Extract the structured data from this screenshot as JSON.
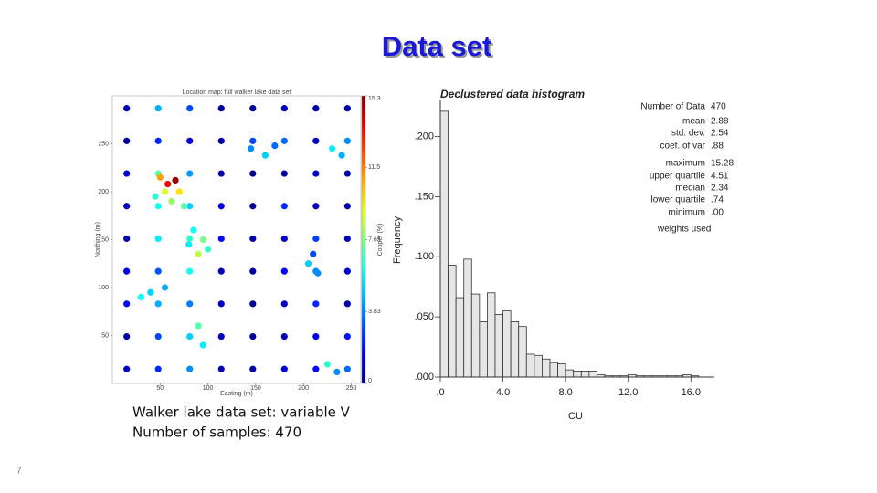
{
  "slide_title": "Data set",
  "caption": [
    "Walker lake data set: variable V",
    "Number of samples: 470"
  ],
  "page_number": "7",
  "chart_data": [
    {
      "type": "scatter",
      "title": "Location map: full walker lake data set",
      "x_label": "Easting (m)",
      "y_label": "Northing (m)",
      "colorbar_label": "Copper (%)",
      "colormap": "jet",
      "xlim": [
        0,
        260
      ],
      "ylim": [
        0,
        300
      ],
      "xticks": [
        50,
        100,
        150,
        200,
        250
      ],
      "yticks": [
        50,
        100,
        150,
        200,
        250
      ],
      "clim": [
        0,
        15.3
      ],
      "cticks": [
        0,
        3.83,
        7.65,
        11.5,
        15.3
      ],
      "x": [
        15,
        48,
        81,
        114,
        147,
        180,
        213,
        246,
        15,
        48,
        81,
        114,
        147,
        180,
        213,
        246,
        15,
        48,
        81,
        114,
        147,
        180,
        213,
        246,
        15,
        48,
        81,
        114,
        147,
        180,
        213,
        246,
        15,
        48,
        81,
        114,
        147,
        180,
        213,
        246,
        15,
        48,
        81,
        114,
        147,
        180,
        213,
        246,
        15,
        48,
        81,
        114,
        147,
        180,
        213,
        246,
        15,
        48,
        81,
        114,
        147,
        180,
        213,
        246,
        15,
        48,
        81,
        114,
        147,
        180,
        213,
        246,
        50,
        58,
        66,
        55,
        70,
        45,
        62,
        75,
        85,
        95,
        80,
        100,
        90,
        40,
        55,
        30,
        90,
        95,
        145,
        160,
        170,
        230,
        240,
        205,
        215,
        210,
        225,
        235
      ],
      "y": [
        15,
        15,
        15,
        15,
        15,
        15,
        15,
        15,
        49,
        49,
        49,
        49,
        49,
        49,
        49,
        49,
        83,
        83,
        83,
        83,
        83,
        83,
        83,
        83,
        117,
        117,
        117,
        117,
        117,
        117,
        117,
        117,
        151,
        151,
        151,
        151,
        151,
        151,
        151,
        151,
        185,
        185,
        185,
        185,
        185,
        185,
        185,
        185,
        219,
        219,
        219,
        219,
        219,
        219,
        219,
        219,
        253,
        253,
        253,
        253,
        253,
        253,
        253,
        253,
        287,
        287,
        287,
        287,
        287,
        287,
        287,
        287,
        215,
        208,
        212,
        200,
        200,
        195,
        190,
        185,
        160,
        150,
        145,
        140,
        135,
        95,
        100,
        90,
        60,
        40,
        245,
        238,
        248,
        245,
        238,
        125,
        115,
        135,
        20,
        12
      ],
      "values": [
        1.0,
        2.5,
        4.0,
        0.8,
        0.5,
        1.2,
        2.0,
        3.5,
        0.6,
        3.0,
        5.0,
        1.0,
        0.4,
        0.7,
        1.5,
        2.2,
        2.0,
        4.5,
        3.8,
        1.1,
        0.3,
        0.9,
        2.5,
        0.8,
        1.5,
        3.2,
        6.0,
        0.9,
        0.5,
        1.8,
        4.0,
        1.2,
        0.7,
        5.5,
        6.5,
        2.0,
        0.6,
        1.0,
        2.8,
        0.9,
        0.9,
        6.0,
        5.0,
        1.4,
        0.4,
        2.5,
        1.0,
        0.6,
        1.2,
        7.0,
        4.2,
        0.8,
        0.3,
        0.5,
        1.1,
        0.7,
        0.5,
        2.5,
        1.5,
        0.6,
        3.0,
        3.5,
        0.8,
        4.0,
        0.8,
        4.5,
        3.0,
        0.5,
        0.4,
        0.9,
        0.6,
        0.7,
        11.0,
        13.5,
        15.0,
        9.0,
        10.0,
        6.5,
        8.0,
        7.0,
        6.0,
        7.5,
        5.5,
        6.5,
        8.5,
        5.0,
        4.5,
        6.0,
        7.0,
        5.5,
        4.0,
        5.0,
        3.5,
        5.5,
        4.5,
        5.0,
        4.0,
        3.0,
        6.5,
        4.0
      ]
    },
    {
      "type": "histogram",
      "title": "Declustered data histogram",
      "x_label": "CU",
      "y_label": "Frequency",
      "color": "#e6e6e6",
      "xlim": [
        0,
        17.5
      ],
      "ylim": [
        0,
        0.23
      ],
      "xticks": [
        {
          "value": 0,
          "label": ".0"
        },
        {
          "value": 4,
          "label": "4.0"
        },
        {
          "value": 8,
          "label": "8.0"
        },
        {
          "value": 12,
          "label": "12.0"
        },
        {
          "value": 16,
          "label": "16.0"
        }
      ],
      "yticks": [
        {
          "value": 0,
          "label": ".000"
        },
        {
          "value": 0.05,
          "label": ".050"
        },
        {
          "value": 0.1,
          "label": ".100"
        },
        {
          "value": 0.15,
          "label": ".150"
        },
        {
          "value": 0.2,
          "label": ".200"
        }
      ],
      "bins": [
        0,
        0.5,
        1,
        1.5,
        2,
        2.5,
        3,
        3.5,
        4,
        4.5,
        5,
        5.5,
        6,
        6.5,
        7,
        7.5,
        8,
        8.5,
        9,
        9.5,
        10,
        10.5,
        11,
        11.5,
        12,
        12.5,
        13,
        13.5,
        14,
        14.5,
        15,
        15.5,
        16,
        16.5
      ],
      "values": [
        0.221,
        0.093,
        0.066,
        0.098,
        0.069,
        0.046,
        0.07,
        0.052,
        0.055,
        0.046,
        0.042,
        0.019,
        0.018,
        0.015,
        0.012,
        0.011,
        0.006,
        0.005,
        0.005,
        0.005,
        0.002,
        0.001,
        0.001,
        0.001,
        0.002,
        0.001,
        0.001,
        0.001,
        0.001,
        0.001,
        0.001,
        0.002,
        0.001
      ],
      "stats": [
        {
          "label": "Number of Data",
          "value": "470"
        },
        {
          "label": "mean",
          "value": "2.88"
        },
        {
          "label": "std. dev.",
          "value": "2.54"
        },
        {
          "label": "coef. of var",
          "value": ".88"
        },
        {
          "label": "maximum",
          "value": "15.28"
        },
        {
          "label": "upper quartile",
          "value": "4.51"
        },
        {
          "label": "median",
          "value": "2.34"
        },
        {
          "label": "lower quartile",
          "value": ".74"
        },
        {
          "label": "minimum",
          "value": ".00"
        }
      ],
      "note": "weights used"
    }
  ]
}
